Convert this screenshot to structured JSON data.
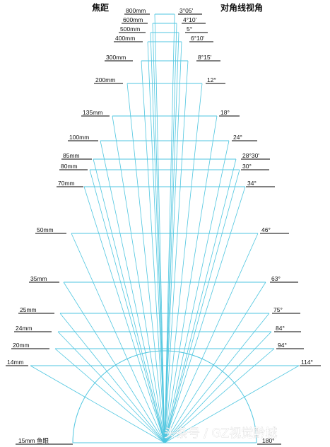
{
  "header": {
    "focal_title": "焦距",
    "angle_title": "对角线视角"
  },
  "watermark": "头条号 / GZ视觉黔城",
  "colors": {
    "line": "#4fc6e0",
    "underline": "#000000",
    "text": "#111111"
  },
  "lenses": [
    {
      "focal": "800mm",
      "angle": "3°05'",
      "angle_deg": 3.08
    },
    {
      "focal": "600mm",
      "angle": "4°10'",
      "angle_deg": 4.17
    },
    {
      "focal": "500mm",
      "angle": "5°",
      "angle_deg": 5
    },
    {
      "focal": "400mm",
      "angle": "6°10'",
      "angle_deg": 6.17
    },
    {
      "focal": "300mm",
      "angle": "8°15'",
      "angle_deg": 8.25
    },
    {
      "focal": "200mm",
      "angle": "12°",
      "angle_deg": 12
    },
    {
      "focal": "135mm",
      "angle": "18°",
      "angle_deg": 18
    },
    {
      "focal": "100mm",
      "angle": "24°",
      "angle_deg": 24
    },
    {
      "focal": "85mm",
      "angle": "28°30'",
      "angle_deg": 28.5
    },
    {
      "focal": "80mm",
      "angle": "30°",
      "angle_deg": 30
    },
    {
      "focal": "70mm",
      "angle": "34°",
      "angle_deg": 34
    },
    {
      "focal": "50mm",
      "angle": "46°",
      "angle_deg": 46
    },
    {
      "focal": "35mm",
      "angle": "63°",
      "angle_deg": 63
    },
    {
      "focal": "25mm",
      "angle": "75°",
      "angle_deg": 75
    },
    {
      "focal": "24mm",
      "angle": "84°",
      "angle_deg": 84
    },
    {
      "focal": "20mm",
      "angle": "94°",
      "angle_deg": 94
    },
    {
      "focal": "14mm",
      "angle": "114°",
      "angle_deg": 114
    },
    {
      "focal": "15mm 鱼眼",
      "angle": "180°",
      "angle_deg": 180
    }
  ]
}
